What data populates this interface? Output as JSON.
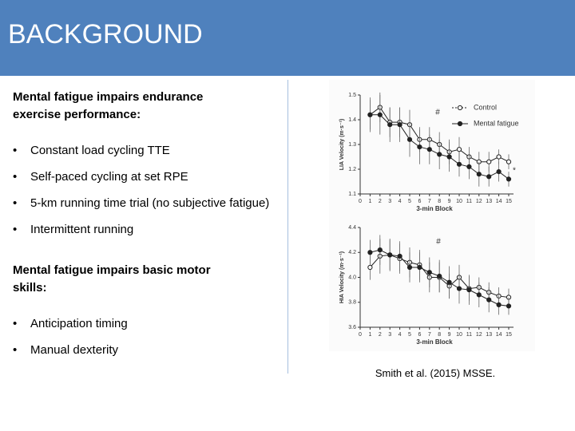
{
  "slide": {
    "header": {
      "title": "BACKGROUND"
    },
    "sections": [
      {
        "heading": "Mental fatigue impairs endurance exercise performance:",
        "bullets": [
          "Constant load cycling TTE",
          "Self-paced cycling at set RPE",
          "5-km running time trial (no subjective fatigue)",
          "Intermittent running"
        ]
      },
      {
        "heading": "Mental fatigue impairs basic motor skills:",
        "bullets": [
          "Anticipation timing",
          "Manual dexterity"
        ]
      }
    ],
    "citation": "Smith et al. (2015) MSSE."
  },
  "chart_data": [
    {
      "type": "line",
      "ylabel": "LIA Velocity (m·s⁻¹)",
      "xlabel": "3-min Block",
      "x": [
        1,
        2,
        3,
        4,
        5,
        6,
        7,
        8,
        9,
        10,
        11,
        12,
        13,
        14,
        15
      ],
      "xlim": [
        0,
        15
      ],
      "xticks": [
        0,
        1,
        2,
        3,
        4,
        5,
        6,
        7,
        8,
        9,
        10,
        11,
        12,
        13,
        14,
        15
      ],
      "ylim": [
        1.1,
        1.5
      ],
      "yticks": [
        1.1,
        1.2,
        1.3,
        1.4,
        1.5
      ],
      "legend": true,
      "annotations": [
        "#",
        "*"
      ],
      "series": [
        {
          "name": "Control",
          "color": "#222222",
          "marker": "open",
          "values": [
            1.42,
            1.45,
            1.39,
            1.39,
            1.38,
            1.32,
            1.32,
            1.3,
            1.27,
            1.28,
            1.25,
            1.23,
            1.23,
            1.25,
            1.23
          ],
          "errors": [
            0.06,
            0.06,
            0.06,
            0.06,
            0.06,
            0.05,
            0.05,
            0.05,
            0.05,
            0.05,
            0.04,
            0.04,
            0.04,
            0.03,
            0.03
          ]
        },
        {
          "name": "Mental fatigue",
          "color": "#222222",
          "marker": "filled",
          "values": [
            1.42,
            1.42,
            1.38,
            1.38,
            1.32,
            1.29,
            1.28,
            1.26,
            1.25,
            1.22,
            1.21,
            1.18,
            1.17,
            1.19,
            1.16
          ],
          "errors": [
            0.07,
            0.08,
            0.07,
            0.07,
            0.07,
            0.07,
            0.06,
            0.06,
            0.06,
            0.05,
            0.05,
            0.05,
            0.04,
            0.04,
            0.03
          ]
        }
      ]
    },
    {
      "type": "line",
      "ylabel": "HIA Velocity (m·s⁻¹)",
      "xlabel": "3-min Block",
      "x": [
        1,
        2,
        3,
        4,
        5,
        6,
        7,
        8,
        9,
        10,
        11,
        12,
        13,
        14,
        15
      ],
      "xlim": [
        0,
        15
      ],
      "xticks": [
        0,
        1,
        2,
        3,
        4,
        5,
        6,
        7,
        8,
        9,
        10,
        11,
        12,
        13,
        14,
        15
      ],
      "ylim": [
        3.6,
        4.4
      ],
      "yticks": [
        3.6,
        3.8,
        {
          "value": 4,
          "label": "4.0"
        },
        4.2,
        4.4
      ],
      "legend": false,
      "annotations": [
        "#"
      ],
      "series": [
        {
          "name": "Control",
          "color": "#222222",
          "marker": "open",
          "values": [
            4.08,
            4.17,
            4.18,
            4.15,
            4.12,
            4.1,
            4.0,
            4.0,
            3.93,
            4.0,
            3.91,
            3.92,
            3.88,
            3.85,
            3.84
          ],
          "errors": [
            0.1,
            0.14,
            0.13,
            0.12,
            0.12,
            0.12,
            0.12,
            0.12,
            0.1,
            0.1,
            0.1,
            0.08,
            0.08,
            0.07,
            0.07
          ]
        },
        {
          "name": "Mental fatigue",
          "color": "#222222",
          "marker": "filled",
          "values": [
            4.2,
            4.22,
            4.18,
            4.17,
            4.08,
            4.08,
            4.04,
            4.01,
            3.96,
            3.91,
            3.9,
            3.86,
            3.82,
            3.78,
            3.77
          ],
          "errors": [
            0.1,
            0.12,
            0.12,
            0.12,
            0.12,
            0.12,
            0.12,
            0.13,
            0.13,
            0.12,
            0.12,
            0.1,
            0.1,
            0.08,
            0.07
          ]
        }
      ]
    }
  ]
}
